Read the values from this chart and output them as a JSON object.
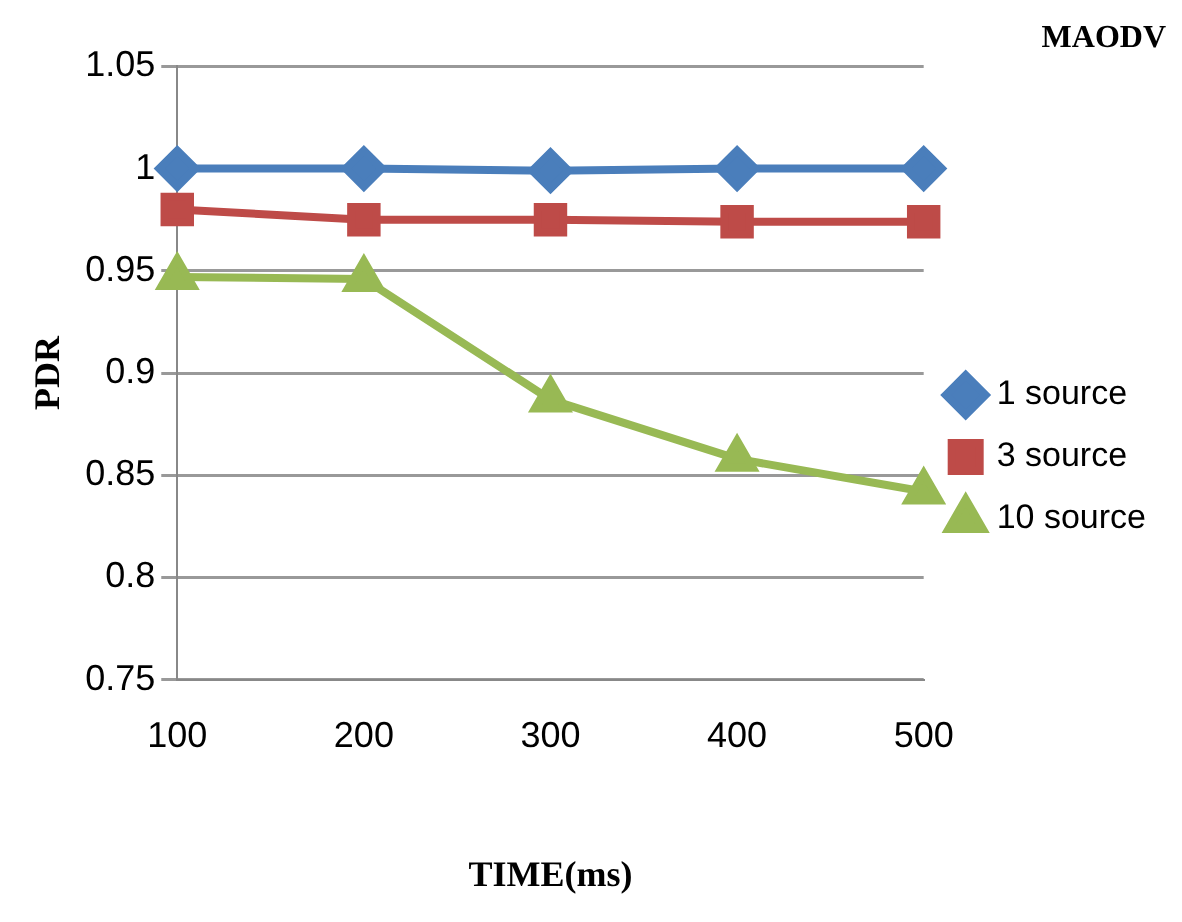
{
  "chart_data": {
    "type": "line",
    "title": "MAODV",
    "xlabel": "TIME(ms)",
    "ylabel": "PDR",
    "categories": [
      "100",
      "200",
      "300",
      "400",
      "500"
    ],
    "series": [
      {
        "name": "1 source",
        "color": "#4a7ebb",
        "marker": "diamond",
        "values": [
          1,
          1,
          0.999,
          1,
          1
        ]
      },
      {
        "name": "3 source",
        "color": "#be4b48",
        "marker": "square",
        "values": [
          0.98,
          0.975,
          0.975,
          0.974,
          0.974
        ]
      },
      {
        "name": "10 source",
        "color": "#98b954",
        "marker": "triangle",
        "values": [
          0.947,
          0.946,
          0.887,
          0.858,
          0.842
        ]
      }
    ],
    "ylim": [
      0.75,
      1.05
    ],
    "yticks": [
      0.75,
      0.8,
      0.85,
      0.9,
      0.95,
      1,
      1.05
    ],
    "grid": "y",
    "legend": "right"
  }
}
